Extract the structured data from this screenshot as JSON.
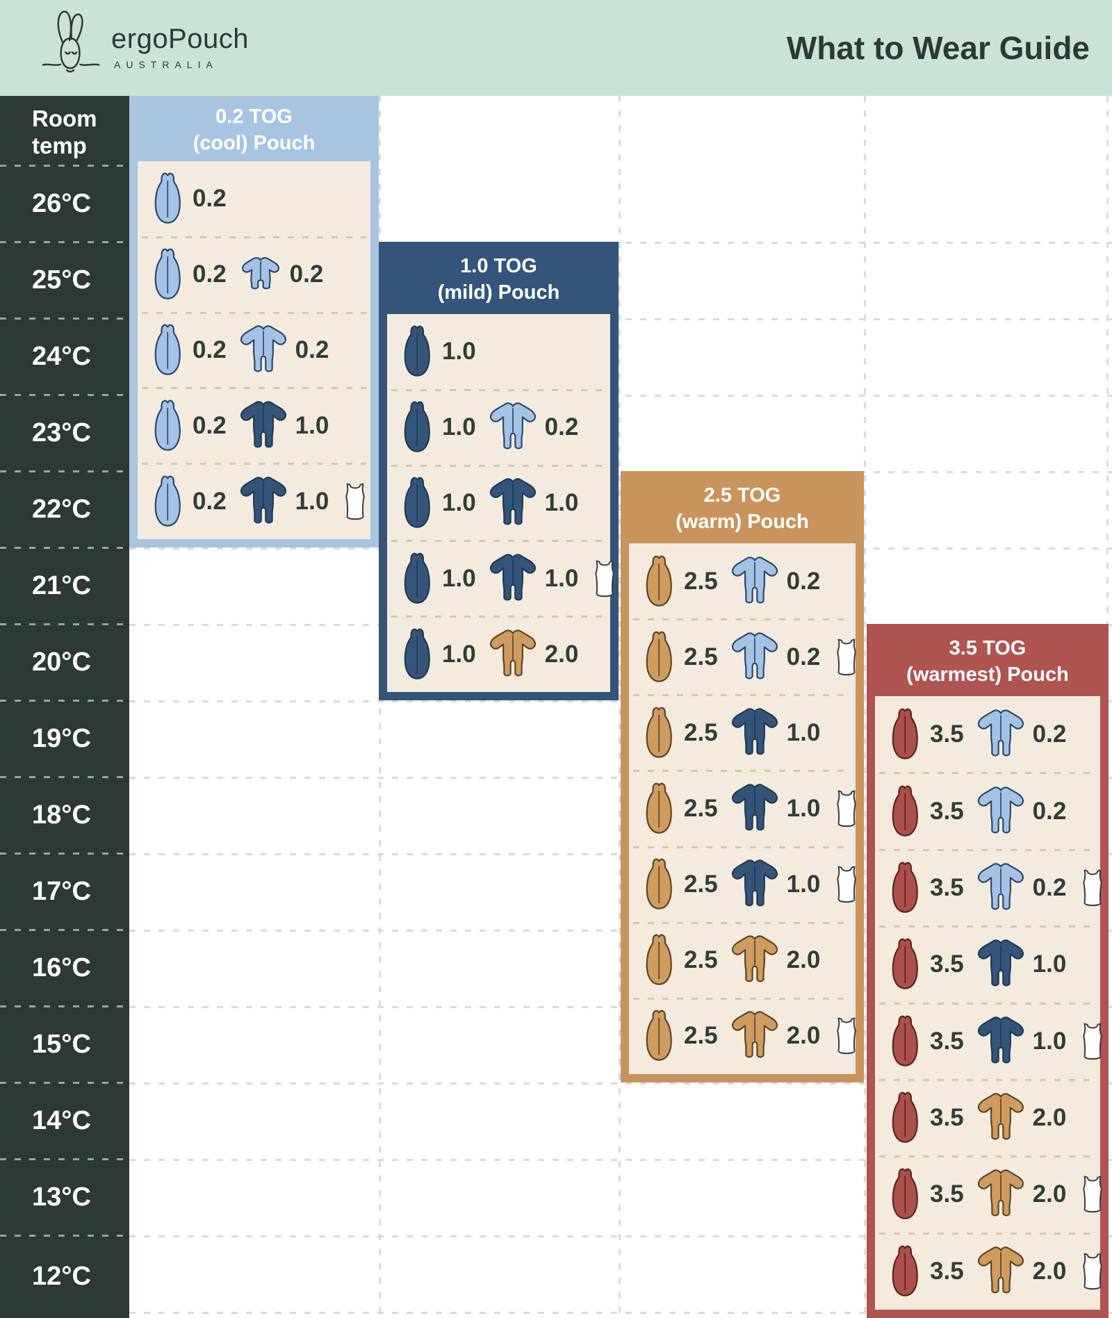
{
  "brand": {
    "name": "ergoPouch",
    "country": "AUSTRALIA"
  },
  "title": "What to Wear Guide",
  "temp_column": {
    "header": "Room temp",
    "temps": [
      "26°C",
      "25°C",
      "24°C",
      "23°C",
      "22°C",
      "21°C",
      "20°C",
      "19°C",
      "18°C",
      "17°C",
      "16°C",
      "15°C",
      "14°C",
      "13°C",
      "12°C"
    ]
  },
  "togs": [
    {
      "tog": "0.2 TOG",
      "descriptor": "(cool) Pouch",
      "color": "#a9c4e1",
      "rows": [
        {
          "temp": "26°C",
          "items": [
            {
              "icon": "pouch",
              "variant": "lightblue",
              "tog": "0.2"
            }
          ]
        },
        {
          "temp": "25°C",
          "items": [
            {
              "icon": "pouch",
              "variant": "lightblue",
              "tog": "0.2"
            },
            {
              "icon": "romper",
              "variant": "lightblue",
              "tog": "0.2"
            }
          ]
        },
        {
          "temp": "24°C",
          "items": [
            {
              "icon": "pouch",
              "variant": "lightblue",
              "tog": "0.2"
            },
            {
              "icon": "onesie",
              "variant": "lightblue",
              "tog": "0.2"
            }
          ]
        },
        {
          "temp": "23°C",
          "items": [
            {
              "icon": "pouch",
              "variant": "lightblue",
              "tog": "0.2"
            },
            {
              "icon": "onesie",
              "variant": "navy",
              "tog": "1.0"
            }
          ]
        },
        {
          "temp": "22°C",
          "items": [
            {
              "icon": "pouch",
              "variant": "lightblue",
              "tog": "0.2"
            },
            {
              "icon": "onesie",
              "variant": "navy",
              "tog": "1.0"
            },
            {
              "icon": "singlet",
              "variant": "white",
              "tog": ""
            }
          ]
        }
      ]
    },
    {
      "tog": "1.0 TOG",
      "descriptor": "(mild) Pouch",
      "color": "#34547a",
      "rows": [
        {
          "temp": "24°C",
          "items": [
            {
              "icon": "pouch",
              "variant": "navy",
              "tog": "1.0"
            }
          ]
        },
        {
          "temp": "23°C",
          "items": [
            {
              "icon": "pouch",
              "variant": "navy",
              "tog": "1.0"
            },
            {
              "icon": "onesie",
              "variant": "lightblue",
              "tog": "0.2"
            }
          ]
        },
        {
          "temp": "22°C",
          "items": [
            {
              "icon": "pouch",
              "variant": "navy",
              "tog": "1.0"
            },
            {
              "icon": "onesie",
              "variant": "navy",
              "tog": "1.0"
            }
          ]
        },
        {
          "temp": "21°C",
          "items": [
            {
              "icon": "pouch",
              "variant": "navy",
              "tog": "1.0"
            },
            {
              "icon": "onesie",
              "variant": "navy",
              "tog": "1.0"
            },
            {
              "icon": "singlet",
              "variant": "white",
              "tog": ""
            }
          ]
        },
        {
          "temp": "20°C",
          "items": [
            {
              "icon": "pouch",
              "variant": "navy",
              "tog": "1.0"
            },
            {
              "icon": "onesie",
              "variant": "tan",
              "tog": "2.0"
            }
          ]
        }
      ]
    },
    {
      "tog": "2.5 TOG",
      "descriptor": "(warm) Pouch",
      "color": "#c9935c",
      "rows": [
        {
          "temp": "21°C",
          "items": [
            {
              "icon": "pouch",
              "variant": "tan",
              "tog": "2.5"
            },
            {
              "icon": "onesie",
              "variant": "lightblue",
              "tog": "0.2"
            }
          ]
        },
        {
          "temp": "20°C",
          "items": [
            {
              "icon": "pouch",
              "variant": "tan",
              "tog": "2.5"
            },
            {
              "icon": "onesie",
              "variant": "lightblue",
              "tog": "0.2"
            },
            {
              "icon": "singlet",
              "variant": "white",
              "tog": ""
            }
          ]
        },
        {
          "temp": "19°C",
          "items": [
            {
              "icon": "pouch",
              "variant": "tan",
              "tog": "2.5"
            },
            {
              "icon": "onesie",
              "variant": "navy",
              "tog": "1.0"
            }
          ]
        },
        {
          "temp": "18°C",
          "items": [
            {
              "icon": "pouch",
              "variant": "tan",
              "tog": "2.5"
            },
            {
              "icon": "onesie",
              "variant": "navy",
              "tog": "1.0"
            },
            {
              "icon": "singlet",
              "variant": "white",
              "tog": ""
            }
          ]
        },
        {
          "temp": "17°C",
          "items": [
            {
              "icon": "pouch",
              "variant": "tan",
              "tog": "2.5"
            },
            {
              "icon": "onesie",
              "variant": "navy",
              "tog": "1.0"
            },
            {
              "icon": "singlet",
              "variant": "white",
              "tog": ""
            }
          ]
        },
        {
          "temp": "16°C",
          "items": [
            {
              "icon": "pouch",
              "variant": "tan",
              "tog": "2.5"
            },
            {
              "icon": "onesie",
              "variant": "tan",
              "tog": "2.0"
            }
          ]
        },
        {
          "temp": "15°C",
          "items": [
            {
              "icon": "pouch",
              "variant": "tan",
              "tog": "2.5"
            },
            {
              "icon": "onesie",
              "variant": "tan",
              "tog": "2.0"
            },
            {
              "icon": "singlet",
              "variant": "white",
              "tog": ""
            }
          ]
        }
      ]
    },
    {
      "tog": "3.5 TOG",
      "descriptor": "(warmest) Pouch",
      "color": "#b05452",
      "rows": [
        {
          "temp": "19°C",
          "items": [
            {
              "icon": "pouch",
              "variant": "red",
              "tog": "3.5"
            },
            {
              "icon": "onesie",
              "variant": "lightblue",
              "tog": "0.2"
            }
          ]
        },
        {
          "temp": "18°C",
          "items": [
            {
              "icon": "pouch",
              "variant": "red",
              "tog": "3.5"
            },
            {
              "icon": "onesie",
              "variant": "lightblue",
              "tog": "0.2"
            }
          ]
        },
        {
          "temp": "17°C",
          "items": [
            {
              "icon": "pouch",
              "variant": "red",
              "tog": "3.5"
            },
            {
              "icon": "onesie",
              "variant": "lightblue",
              "tog": "0.2"
            },
            {
              "icon": "singlet",
              "variant": "white",
              "tog": ""
            }
          ]
        },
        {
          "temp": "16°C",
          "items": [
            {
              "icon": "pouch",
              "variant": "red",
              "tog": "3.5"
            },
            {
              "icon": "onesie",
              "variant": "navy",
              "tog": "1.0"
            }
          ]
        },
        {
          "temp": "15°C",
          "items": [
            {
              "icon": "pouch",
              "variant": "red",
              "tog": "3.5"
            },
            {
              "icon": "onesie",
              "variant": "navy",
              "tog": "1.0"
            },
            {
              "icon": "singlet",
              "variant": "white",
              "tog": ""
            }
          ]
        },
        {
          "temp": "14°C",
          "items": [
            {
              "icon": "pouch",
              "variant": "red",
              "tog": "3.5"
            },
            {
              "icon": "onesie",
              "variant": "tan",
              "tog": "2.0"
            }
          ]
        },
        {
          "temp": "13°C",
          "items": [
            {
              "icon": "pouch",
              "variant": "red",
              "tog": "3.5"
            },
            {
              "icon": "onesie",
              "variant": "tan",
              "tog": "2.0"
            },
            {
              "icon": "singlet",
              "variant": "white",
              "tog": ""
            }
          ]
        },
        {
          "temp": "12°C",
          "items": [
            {
              "icon": "pouch",
              "variant": "red",
              "tog": "3.5"
            },
            {
              "icon": "onesie",
              "variant": "tan",
              "tog": "2.0"
            },
            {
              "icon": "singlet",
              "variant": "white",
              "tog": ""
            }
          ]
        }
      ]
    }
  ],
  "colors": {
    "banner_mint": "#cbe3d5",
    "dark": "#2d3936",
    "cream": "#f4eadd",
    "variants": {
      "lightblue": "#a4c2e4",
      "navy": "#34547a",
      "tan": "#d09b5f",
      "red": "#ad4f4c",
      "white": "#ffffff"
    }
  }
}
